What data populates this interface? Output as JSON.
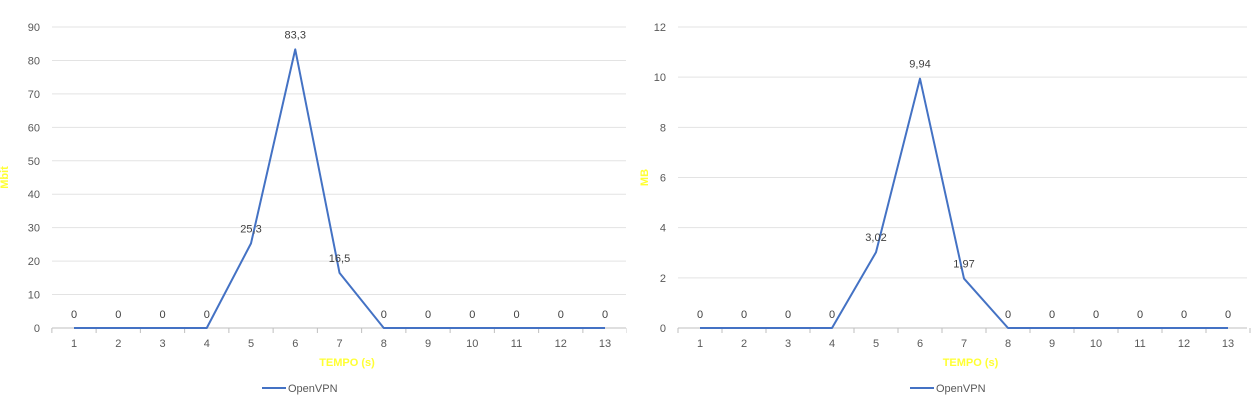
{
  "accent_color": "#4472C4",
  "axis_title_color": "#FFFF33",
  "chart_data": [
    {
      "type": "line",
      "title": "",
      "xlabel": "TEMPO (s)",
      "ylabel": "Mbit",
      "ylim": [
        0,
        90
      ],
      "yticks": [
        0,
        10,
        20,
        30,
        40,
        50,
        60,
        70,
        80,
        90
      ],
      "ytick_labels": [
        "0",
        "10",
        "20",
        "30",
        "40",
        "50",
        "60",
        "70",
        "80",
        "90"
      ],
      "categories": [
        "1",
        "2",
        "3",
        "4",
        "5",
        "6",
        "7",
        "8",
        "9",
        "10",
        "11",
        "12",
        "13"
      ],
      "series": [
        {
          "name": "OpenVPN",
          "values": [
            0,
            0,
            0,
            0,
            25.3,
            83.3,
            16.5,
            0,
            0,
            0,
            0,
            0,
            0
          ],
          "labels": [
            "0",
            "0",
            "0",
            "0",
            "25,3",
            "83,3",
            "16,5",
            "0",
            "0",
            "0",
            "0",
            "0",
            "0"
          ]
        }
      ],
      "grid": "horizontal",
      "legend": "bottom"
    },
    {
      "type": "line",
      "title": "",
      "xlabel": "TEMPO (s)",
      "ylabel": "MB",
      "ylim": [
        0,
        12
      ],
      "yticks": [
        0,
        2,
        4,
        6,
        8,
        10,
        12
      ],
      "ytick_labels": [
        "0",
        "2",
        "4",
        "6",
        "8",
        "10",
        "12"
      ],
      "categories": [
        "1",
        "2",
        "3",
        "4",
        "5",
        "6",
        "7",
        "8",
        "9",
        "10",
        "11",
        "12",
        "13"
      ],
      "series": [
        {
          "name": "OpenVPN",
          "values": [
            0,
            0,
            0,
            0,
            3.02,
            9.94,
            1.97,
            0,
            0,
            0,
            0,
            0,
            0
          ],
          "labels": [
            "0",
            "0",
            "0",
            "0",
            "3,02",
            "9,94",
            "1,97",
            "0",
            "0",
            "0",
            "0",
            "0",
            "0"
          ]
        }
      ],
      "grid": "horizontal",
      "legend": "bottom"
    }
  ]
}
